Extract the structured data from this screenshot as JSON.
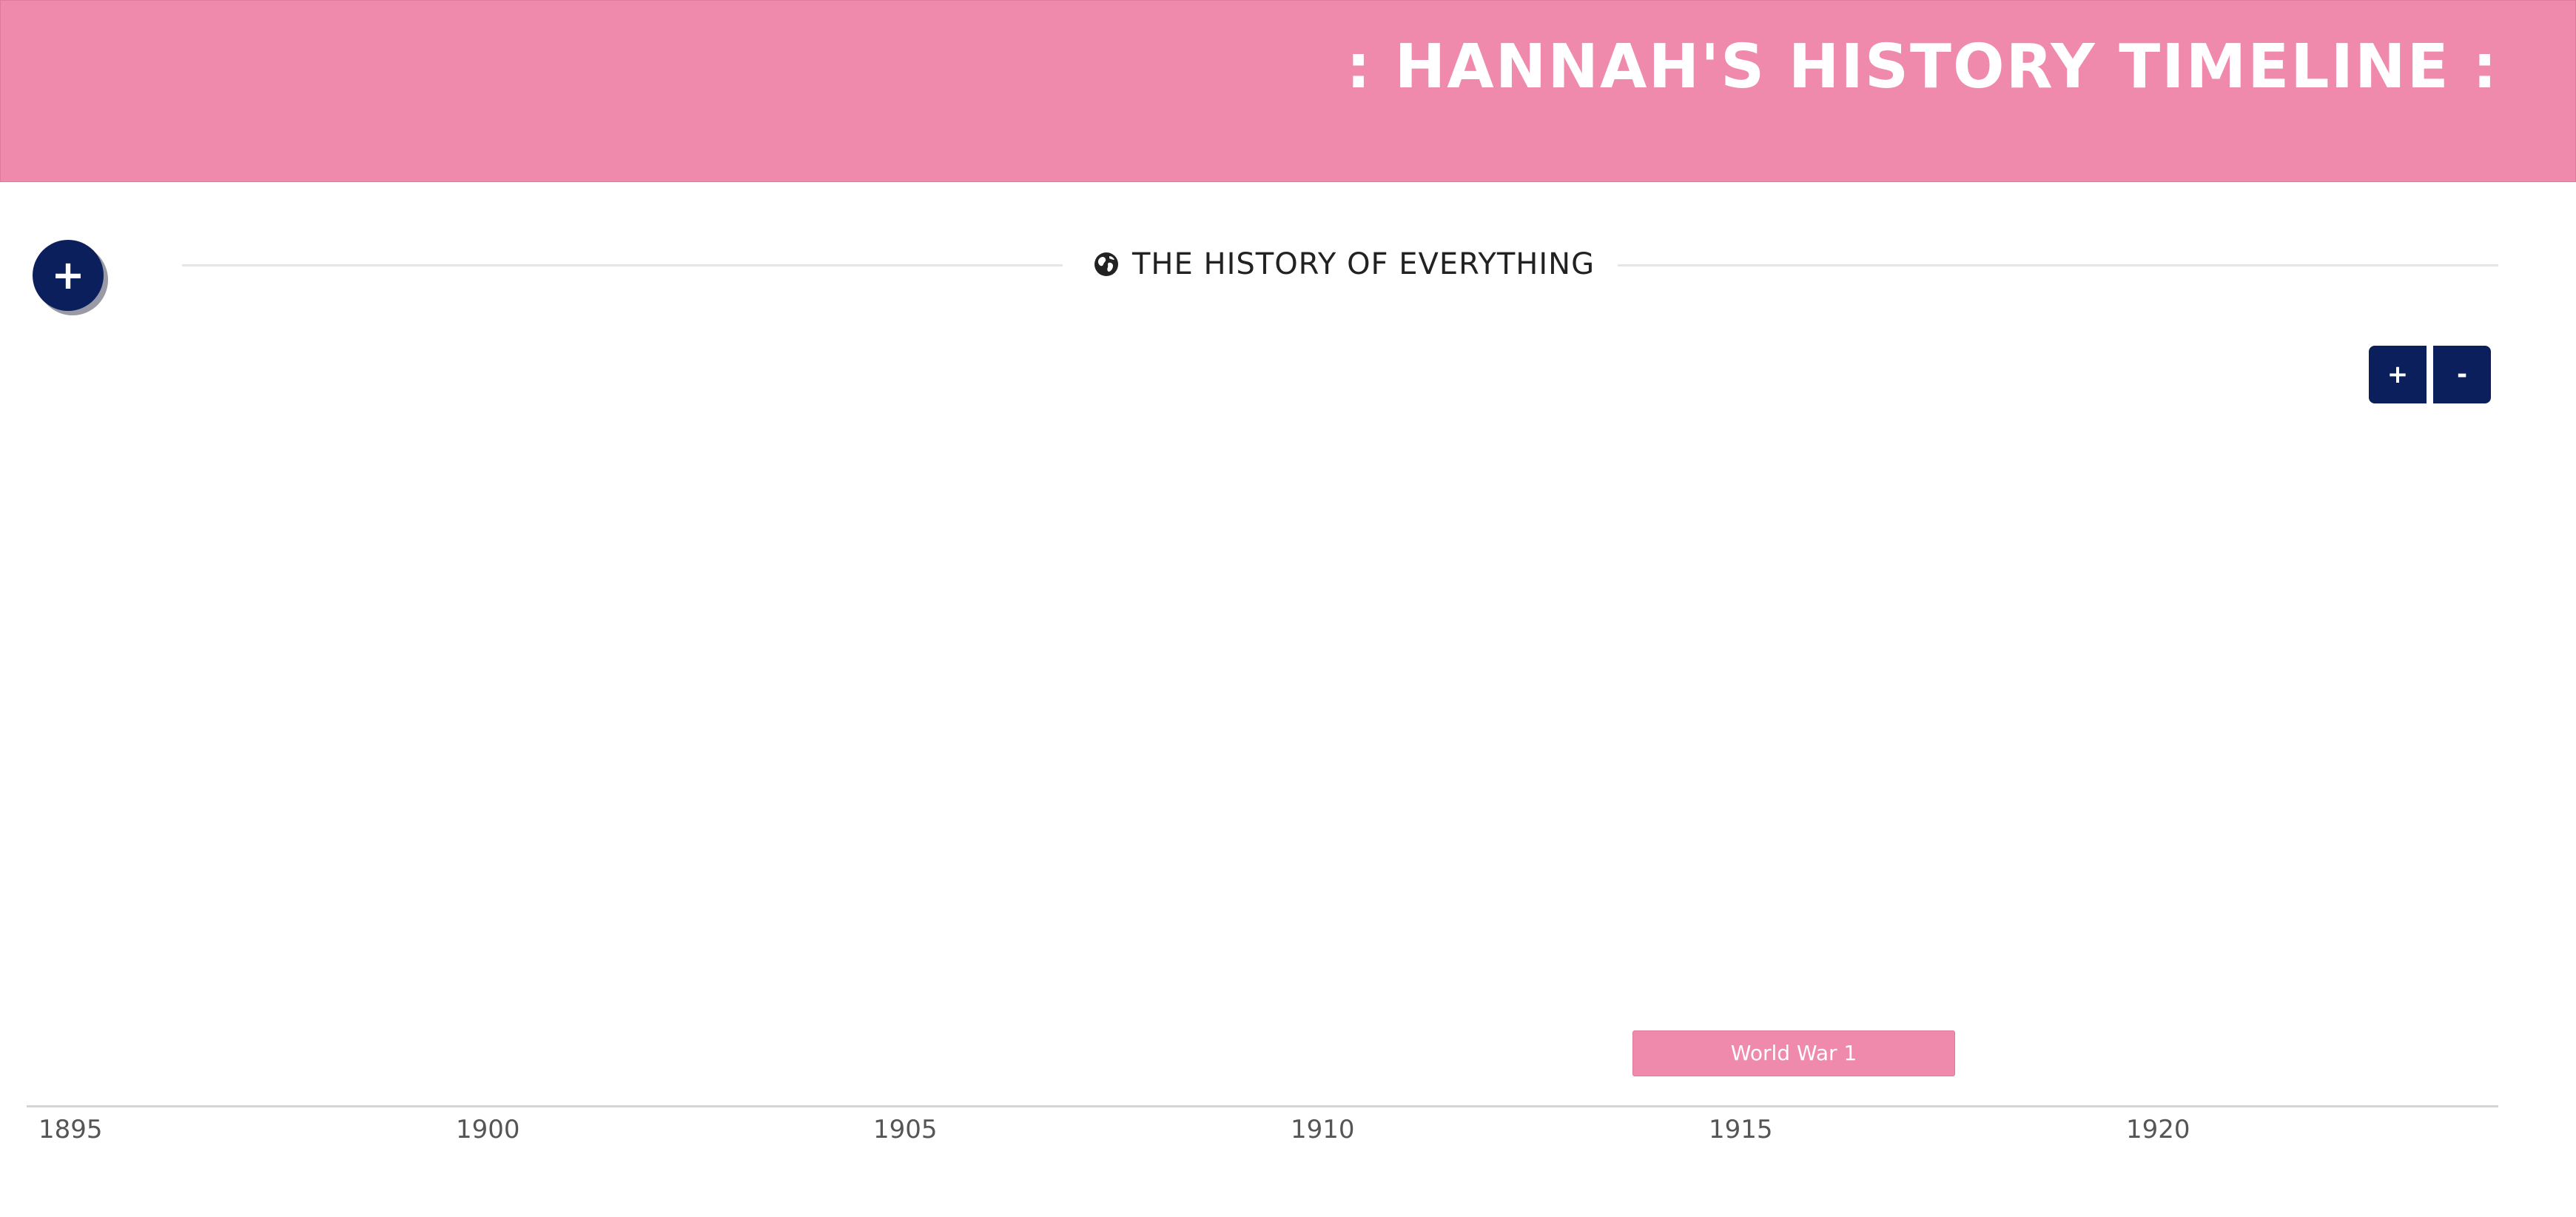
{
  "header": {
    "title": ": HANNAH'S HISTORY TIMELINE :",
    "background_color": "#ef8aac"
  },
  "add_button": {
    "label": "+",
    "icon": "plus-icon",
    "color": "#0b1f5c"
  },
  "section": {
    "title": "THE HISTORY OF EVERYTHING",
    "icon": "globe-icon"
  },
  "zoom": {
    "in_label": "+",
    "out_label": "-"
  },
  "timeline": {
    "ticks": [
      "1895",
      "1900",
      "1905",
      "1910",
      "1915",
      "1920"
    ],
    "events": [
      {
        "label": "World War 1",
        "color": "#ef8aac"
      }
    ]
  }
}
